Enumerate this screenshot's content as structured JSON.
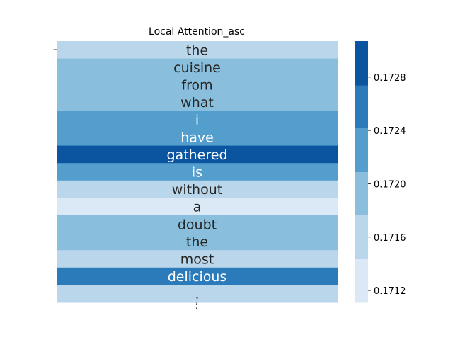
{
  "chart_data": {
    "type": "heatmap",
    "title": "Local Attention_asc",
    "xlabel": "",
    "ylabel": "",
    "tokens": [
      "the",
      "cuisine",
      "from",
      "what",
      "i",
      "have",
      "gathered",
      "is",
      "without",
      "a",
      "doubt",
      "the",
      "most",
      "delicious",
      "."
    ],
    "values": [
      0.1716,
      0.1719,
      0.1719,
      0.1719,
      0.1722,
      0.1722,
      0.1729,
      0.1722,
      0.1716,
      0.1713,
      0.1719,
      0.1719,
      0.1716,
      0.1725,
      0.1716
    ],
    "colorbar": {
      "ticks": [
        "0.1712",
        "0.1716",
        "0.1720",
        "0.1724",
        "0.1728"
      ],
      "tick_values": [
        0.1712,
        0.1716,
        0.172,
        0.1724,
        0.1728
      ],
      "range": [
        0.17111,
        0.17307
      ],
      "bins": [
        {
          "from": 0.17111,
          "to": 0.17144,
          "color": "#dbe8f5"
        },
        {
          "from": 0.17144,
          "to": 0.17177,
          "color": "#bad6eb"
        },
        {
          "from": 0.17177,
          "to": 0.17209,
          "color": "#89bedc"
        },
        {
          "from": 0.17209,
          "to": 0.17242,
          "color": "#539ecd"
        },
        {
          "from": 0.17242,
          "to": 0.17274,
          "color": "#2b7bba"
        },
        {
          "from": 0.17274,
          "to": 0.17307,
          "color": "#0b55a0"
        }
      ]
    },
    "y_ticks": [
      "-"
    ],
    "x_ticks": [
      ":"
    ],
    "colormap": "Blues",
    "light_text_color": "#ffffff",
    "dark_text_color": "#262626"
  }
}
